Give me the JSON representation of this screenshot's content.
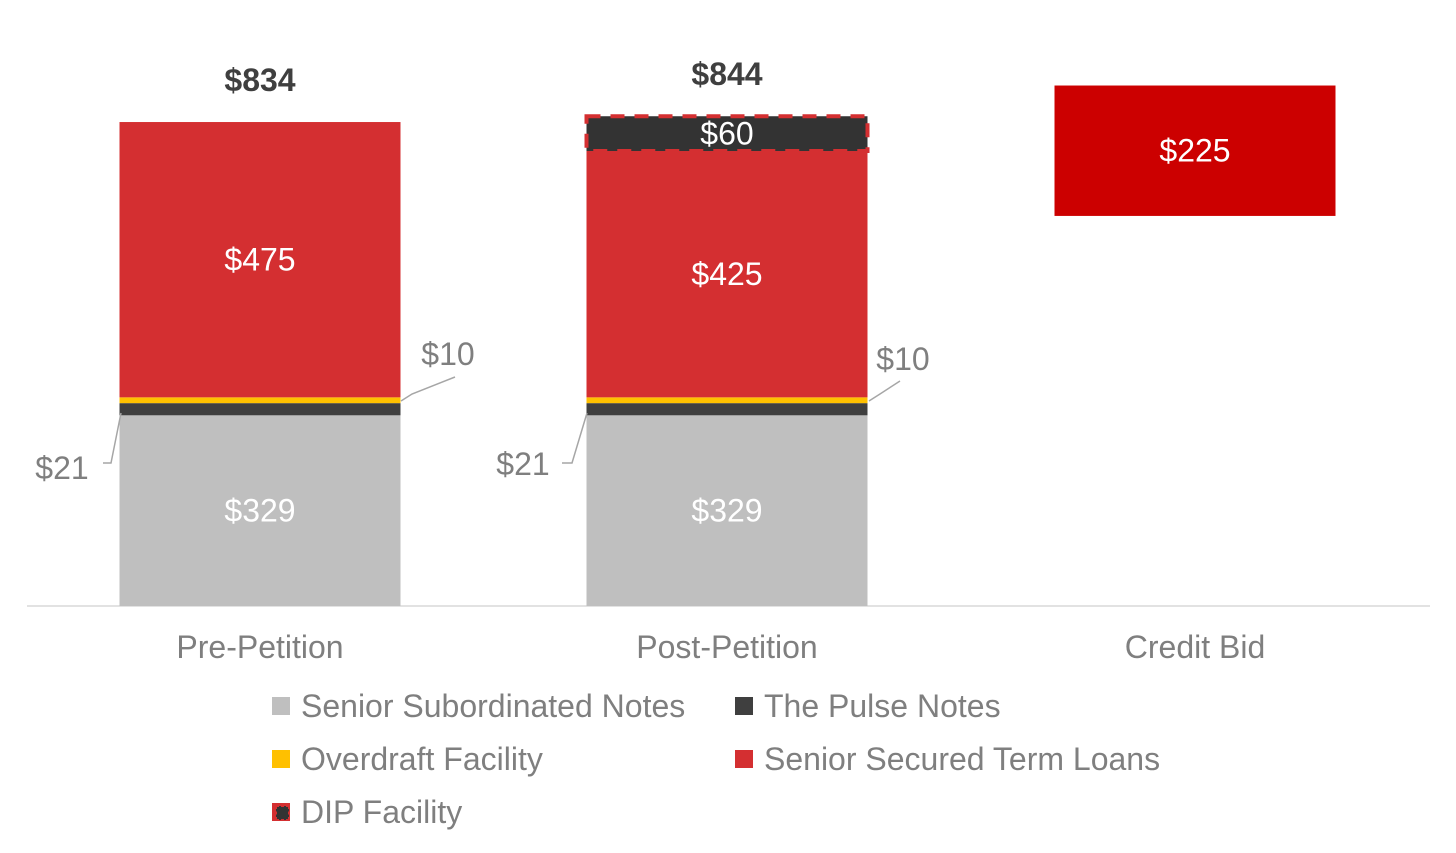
{
  "chart_data": {
    "type": "bar",
    "stacked": true,
    "categories": [
      "Pre-Petition",
      "Post-Petition",
      "Credit Bid"
    ],
    "series": [
      {
        "name": "Senior Subordinated Notes",
        "color": "#bfbfbf",
        "values": [
          329,
          329,
          null
        ],
        "labels": [
          "$329",
          "$329",
          ""
        ]
      },
      {
        "name": "The Pulse Notes",
        "color": "#3f3f3f",
        "values": [
          21,
          21,
          null
        ],
        "labels": [
          "$21",
          "$21",
          ""
        ]
      },
      {
        "name": "Overdraft Facility",
        "color": "#ffc000",
        "values": [
          10,
          10,
          null
        ],
        "labels": [
          "$10",
          "$10",
          ""
        ]
      },
      {
        "name": "Senior Secured Term Loans",
        "color": "#d42f31",
        "values": [
          475,
          425,
          null
        ],
        "labels": [
          "$475",
          "$425",
          ""
        ]
      },
      {
        "name": "DIP Facility",
        "color": "#333333",
        "border_color": "#d42f31",
        "border_style": "dashed",
        "values": [
          null,
          60,
          null
        ],
        "labels": [
          "",
          "$60",
          ""
        ]
      }
    ],
    "totals": [
      {
        "category": "Pre-Petition",
        "label": "$834"
      },
      {
        "category": "Post-Petition",
        "label": "$844"
      }
    ],
    "floating_bars": [
      {
        "category": "Credit Bid",
        "value": 225,
        "range": [
          673,
          898
        ],
        "label": "$225",
        "color": "#cc0000"
      }
    ],
    "ylim": [
      0,
      1000
    ],
    "grid": false,
    "legend_position": "bottom"
  }
}
